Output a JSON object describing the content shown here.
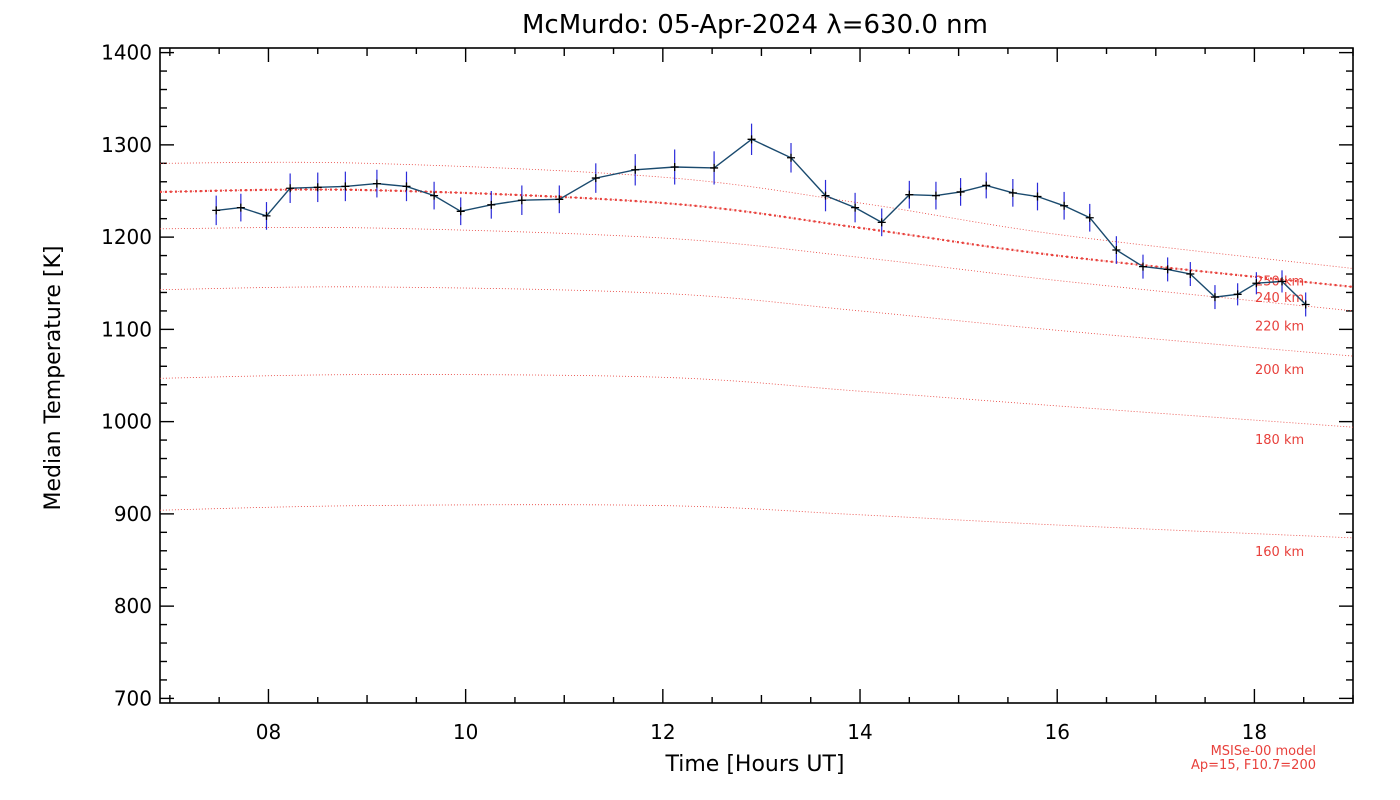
{
  "chart_data": {
    "type": "line",
    "title": "McMurdo: 05-Apr-2024 λ=630.0 nm",
    "xlabel": "Time [Hours UT]",
    "ylabel": "Median Temperature [K]",
    "xlim": [
      6.9,
      19.0
    ],
    "ylim": [
      695,
      1405
    ],
    "x_ticks": [
      8,
      10,
      12,
      14,
      16,
      18
    ],
    "x_tick_labels": [
      "08",
      "10",
      "12",
      "14",
      "16",
      "18"
    ],
    "y_ticks": [
      700,
      800,
      900,
      1000,
      1100,
      1200,
      1300,
      1400
    ],
    "y_tick_labels": [
      "700",
      "800",
      "900",
      "1000",
      "1100",
      "1200",
      "1300",
      "1400"
    ],
    "grid": false,
    "series": [
      {
        "type": "line-errorbar",
        "color": "#1a4a6e",
        "errcolor": "#2b2bd9",
        "points": [
          {
            "x": 7.47,
            "y": 1229,
            "err": 16
          },
          {
            "x": 7.72,
            "y": 1232,
            "err": 15
          },
          {
            "x": 7.98,
            "y": 1223,
            "err": 15
          },
          {
            "x": 8.22,
            "y": 1253,
            "err": 16
          },
          {
            "x": 8.5,
            "y": 1254,
            "err": 16
          },
          {
            "x": 8.78,
            "y": 1255,
            "err": 16
          },
          {
            "x": 9.1,
            "y": 1258,
            "err": 15
          },
          {
            "x": 9.4,
            "y": 1255,
            "err": 16
          },
          {
            "x": 9.68,
            "y": 1245,
            "err": 15
          },
          {
            "x": 9.95,
            "y": 1228,
            "err": 15
          },
          {
            "x": 10.26,
            "y": 1235,
            "err": 15
          },
          {
            "x": 10.57,
            "y": 1240,
            "err": 16
          },
          {
            "x": 10.95,
            "y": 1241,
            "err": 15
          },
          {
            "x": 11.32,
            "y": 1264,
            "err": 16
          },
          {
            "x": 11.72,
            "y": 1273,
            "err": 17
          },
          {
            "x": 12.12,
            "y": 1276,
            "err": 19
          },
          {
            "x": 12.52,
            "y": 1275,
            "err": 18
          },
          {
            "x": 12.9,
            "y": 1306,
            "err": 17
          },
          {
            "x": 13.3,
            "y": 1286,
            "err": 16
          },
          {
            "x": 13.65,
            "y": 1245,
            "err": 17
          },
          {
            "x": 13.95,
            "y": 1232,
            "err": 16
          },
          {
            "x": 14.22,
            "y": 1216,
            "err": 15
          },
          {
            "x": 14.5,
            "y": 1246,
            "err": 15
          },
          {
            "x": 14.77,
            "y": 1245,
            "err": 15
          },
          {
            "x": 15.02,
            "y": 1249,
            "err": 15
          },
          {
            "x": 15.28,
            "y": 1256,
            "err": 14
          },
          {
            "x": 15.55,
            "y": 1248,
            "err": 15
          },
          {
            "x": 15.8,
            "y": 1244,
            "err": 15
          },
          {
            "x": 16.07,
            "y": 1234,
            "err": 15
          },
          {
            "x": 16.33,
            "y": 1221,
            "err": 15
          },
          {
            "x": 16.6,
            "y": 1186,
            "err": 15
          },
          {
            "x": 16.87,
            "y": 1168,
            "err": 13
          },
          {
            "x": 17.12,
            "y": 1165,
            "err": 13
          },
          {
            "x": 17.35,
            "y": 1160,
            "err": 13
          },
          {
            "x": 17.6,
            "y": 1135,
            "err": 13
          },
          {
            "x": 17.83,
            "y": 1138,
            "err": 12
          },
          {
            "x": 18.02,
            "y": 1150,
            "err": 12
          },
          {
            "x": 18.28,
            "y": 1152,
            "err": 12
          },
          {
            "x": 18.52,
            "y": 1127,
            "err": 13
          }
        ]
      }
    ],
    "model_curves": [
      {
        "label": "160 km",
        "color": "#e8413c",
        "dashed": "dotted",
        "label_y": 860,
        "x": [
          6.9,
          9,
          12,
          14,
          16,
          19
        ],
        "y": [
          904,
          909,
          909,
          899,
          888,
          874
        ]
      },
      {
        "label": "180 km",
        "color": "#e8413c",
        "dashed": "dotted",
        "label_y": 981,
        "x": [
          6.9,
          9,
          12,
          14,
          16,
          19
        ],
        "y": [
          1047,
          1051,
          1048,
          1033,
          1017,
          994
        ]
      },
      {
        "label": "200 km",
        "color": "#e8413c",
        "dashed": "dotted",
        "label_y": 1057,
        "x": [
          6.9,
          9,
          12,
          14,
          16,
          19
        ],
        "y": [
          1143,
          1146,
          1139,
          1120,
          1099,
          1071
        ]
      },
      {
        "label": "220 km",
        "color": "#e8413c",
        "dashed": "dotted",
        "label_y": 1104,
        "x": [
          6.9,
          9,
          12,
          14,
          16,
          19
        ],
        "y": [
          1209,
          1210,
          1199,
          1178,
          1153,
          1120
        ]
      },
      {
        "label": "240 km",
        "color": "#e8413c",
        "dashed": "dotted",
        "label_y": 1135,
        "x": [
          6.9,
          9,
          12,
          14,
          16,
          19
        ],
        "y": [
          1249,
          1251,
          1237,
          1210,
          1180,
          1146
        ]
      },
      {
        "label": "250 km",
        "color": "#e8413c",
        "dashed": "thick-dotted",
        "label_y": 1153,
        "x": [
          6.9,
          9,
          12,
          14,
          16,
          19
        ],
        "y": [
          1249,
          1251,
          1237,
          1210,
          1180,
          1146
        ]
      },
      {
        "label": "",
        "color": "#e8413c",
        "dashed": "dotted",
        "x": [
          6.9,
          9,
          12,
          14,
          16,
          19
        ],
        "y": [
          1280,
          1280,
          1265,
          1237,
          1203,
          1166
        ]
      }
    ],
    "annotations": {
      "model_line1": "MSISe-00 model",
      "model_line2": "Ap=15, F10.7=200"
    }
  }
}
